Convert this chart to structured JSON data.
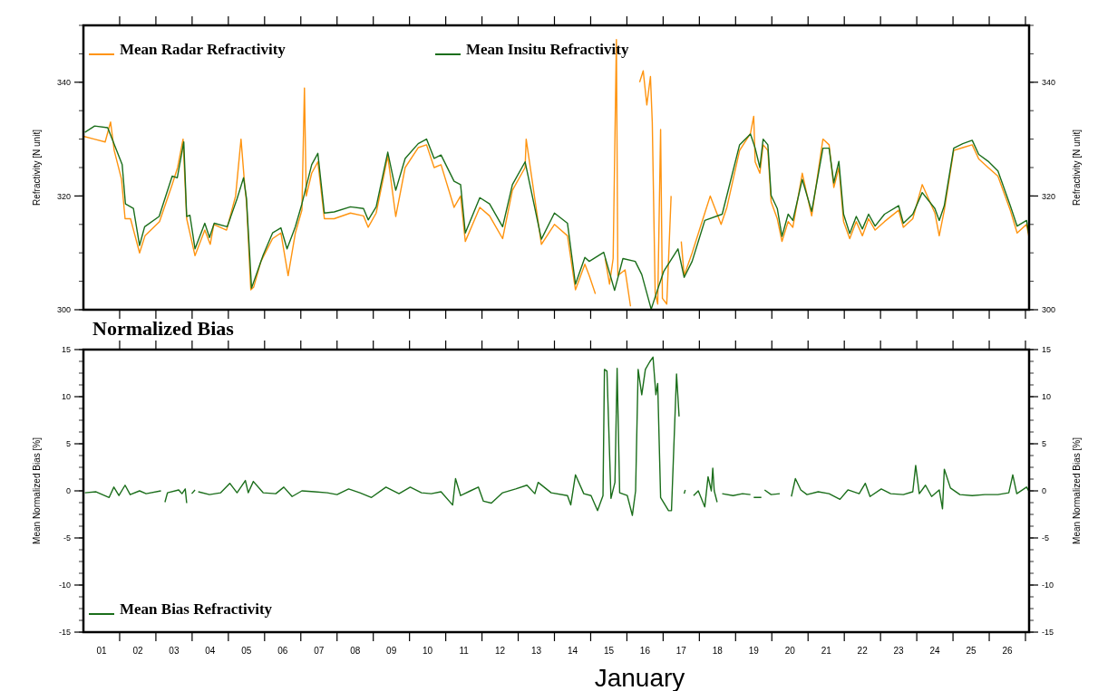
{
  "chart_data": [
    {
      "type": "line",
      "legend": "top",
      "tick_labels": "y",
      "grid": false,
      "line_style": "solid",
      "ylabel": "Refractivity [N unit]",
      "y2label": "Refractivity [N unit]",
      "xlim": [
        1,
        27.1
      ],
      "ylim": [
        300,
        350
      ],
      "yticks": [
        300,
        320,
        340
      ],
      "y2lim": [
        300,
        350
      ],
      "y2ticks": [
        300,
        320,
        340
      ],
      "xticks": [
        {
          "value": 2,
          "label": null
        },
        {
          "value": 3,
          "label": null
        },
        {
          "value": 4,
          "label": null
        },
        {
          "value": 5,
          "label": null
        },
        {
          "value": 6,
          "label": null
        },
        {
          "value": 7,
          "label": null
        },
        {
          "value": 8,
          "label": null
        },
        {
          "value": 9,
          "label": null
        },
        {
          "value": 10,
          "label": null
        },
        {
          "value": 11,
          "label": null
        },
        {
          "value": 12,
          "label": null
        },
        {
          "value": 13,
          "label": null
        },
        {
          "value": 14,
          "label": null
        },
        {
          "value": 15,
          "label": null
        },
        {
          "value": 16,
          "label": null
        },
        {
          "value": 17,
          "label": null
        },
        {
          "value": 18,
          "label": null
        },
        {
          "value": 19,
          "label": null
        },
        {
          "value": 20,
          "label": null
        },
        {
          "value": 21,
          "label": null
        },
        {
          "value": 22,
          "label": null
        },
        {
          "value": 23,
          "label": null
        },
        {
          "value": 24,
          "label": null
        },
        {
          "value": 25,
          "label": null
        },
        {
          "value": 26,
          "label": null
        },
        {
          "value": 27,
          "label": null
        }
      ],
      "series": [
        {
          "name": "Mean Radar Refractivity",
          "color": "#ff9410",
          "x": [
            1.0,
            1.3,
            1.6,
            1.75,
            1.85,
            2.05,
            2.15,
            2.3,
            2.55,
            2.7,
            3.1,
            3.45,
            3.6,
            3.75,
            3.85,
            4.08,
            4.35,
            4.5,
            4.6,
            4.95,
            5.2,
            5.35,
            5.45,
            5.5,
            5.62,
            5.7,
            5.9,
            6.22,
            6.45,
            6.65,
            6.85,
            7.03,
            7.1,
            7.15,
            7.3,
            7.47,
            7.65,
            7.92,
            8.37,
            8.73,
            8.86,
            9.08,
            9.4,
            9.62,
            9.88,
            10.24,
            10.47,
            10.68,
            10.87,
            11.23,
            11.41,
            11.54,
            11.94,
            12.21,
            12.57,
            12.84,
            13.19,
            13.22,
            13.64,
            14.0,
            14.36,
            14.58,
            14.84,
            14.96,
            15.13,
            15.25,
            15.3,
            15.35,
            15.4,
            15.52,
            15.62,
            15.71,
            15.75,
            15.95,
            16.1,
            16.15,
            16.2,
            16.3,
            16.35,
            16.45,
            16.55,
            16.65,
            16.7,
            16.78,
            16.85,
            16.93,
            16.98,
            17.1,
            17.22,
            17.27,
            17.33,
            17.45,
            17.5,
            17.58,
            17.8,
            18.0,
            18.15,
            18.3,
            18.6,
            18.76,
            19.11,
            19.41,
            19.5,
            19.54,
            19.67,
            19.76,
            19.89,
            19.98,
            20.15,
            20.28,
            20.45,
            20.58,
            20.84,
            21.1,
            21.41,
            21.58,
            21.71,
            21.85,
            21.98,
            22.15,
            22.33,
            22.5,
            22.67,
            22.85,
            23.11,
            23.5,
            23.63,
            23.89,
            24.15,
            24.5,
            24.62,
            24.76,
            25.02,
            25.27,
            25.53,
            25.71,
            25.97,
            26.24,
            26.58,
            26.77,
            27.03,
            27.09
          ],
          "values": [
            330.5,
            330,
            329.5,
            333,
            328,
            323,
            316,
            316,
            310,
            313,
            315.5,
            322,
            325,
            330,
            316,
            309.5,
            314,
            311.5,
            315,
            314,
            320,
            330,
            322,
            319,
            303.5,
            304,
            308.5,
            312.5,
            313.5,
            306,
            313.5,
            317.5,
            339,
            320,
            324,
            326,
            316,
            316,
            317,
            316.5,
            314.5,
            317,
            327,
            316.4,
            325,
            328.5,
            329,
            325,
            325.5,
            318,
            320,
            312,
            318,
            316.5,
            312.5,
            321,
            325,
            330,
            311.5,
            315,
            313,
            303.5,
            308,
            306,
            302.8,
            null,
            null,
            null,
            309,
            304.5,
            309,
            347.5,
            306,
            307,
            300.6,
            null,
            null,
            null,
            340,
            342,
            336,
            341,
            333,
            303,
            301,
            331.7,
            302,
            301,
            320,
            null,
            null,
            null,
            312,
            306,
            310,
            314,
            317,
            320,
            315,
            318,
            328,
            331,
            334,
            326,
            324,
            329,
            328,
            319,
            316,
            312,
            315.5,
            314.5,
            324,
            316.5,
            330,
            329,
            321.5,
            325,
            315.5,
            312.5,
            315.5,
            313,
            316,
            314,
            315.5,
            317.5,
            314.5,
            316,
            322,
            317,
            313,
            317.5,
            328,
            328.5,
            329,
            326.5,
            325,
            323.5,
            317.5,
            313.5,
            315,
            313
          ]
        },
        {
          "name": "Mean Insitu Refractivity",
          "color": "#1b6e1b",
          "x": [
            1.04,
            1.31,
            1.67,
            2.07,
            2.16,
            2.38,
            2.55,
            2.69,
            3.09,
            3.45,
            3.59,
            3.77,
            3.85,
            3.94,
            4.08,
            4.35,
            4.48,
            4.61,
            4.97,
            5.24,
            5.42,
            5.5,
            5.64,
            5.96,
            6.22,
            6.45,
            6.62,
            6.85,
            7.03,
            7.3,
            7.47,
            7.65,
            7.92,
            8.37,
            8.73,
            8.86,
            9.08,
            9.4,
            9.62,
            9.88,
            10.24,
            10.47,
            10.68,
            10.87,
            11.23,
            11.41,
            11.54,
            11.94,
            12.21,
            12.57,
            12.84,
            13.19,
            13.64,
            14.0,
            14.36,
            14.58,
            14.84,
            14.96,
            15.36,
            15.66,
            15.89,
            16.23,
            16.41,
            16.67,
            16.84,
            17.02,
            17.41,
            17.58,
            17.8,
            18.15,
            18.63,
            18.76,
            19.11,
            19.41,
            19.54,
            19.67,
            19.76,
            19.89,
            19.98,
            20.15,
            20.28,
            20.45,
            20.58,
            20.84,
            21.1,
            21.41,
            21.58,
            21.71,
            21.85,
            21.98,
            22.15,
            22.33,
            22.5,
            22.67,
            22.85,
            23.11,
            23.5,
            23.63,
            23.89,
            24.15,
            24.5,
            24.62,
            24.76,
            25.02,
            25.27,
            25.53,
            25.71,
            25.97,
            26.24,
            26.58,
            26.77,
            27.03,
            27.09
          ],
          "values": [
            331.2,
            332.3,
            332.0,
            325.5,
            318.6,
            317.8,
            311.3,
            314.6,
            316.4,
            323.5,
            323.2,
            329.5,
            316.4,
            316.6,
            310.7,
            315.2,
            312.7,
            315.2,
            314.6,
            319.5,
            323.2,
            319.6,
            303.8,
            309.6,
            313.5,
            314.4,
            310.7,
            314.6,
            318.6,
            325.5,
            327.5,
            317.0,
            317.2,
            318.1,
            317.8,
            315.8,
            318.1,
            327.7,
            321.0,
            326.6,
            329.2,
            330.0,
            326.6,
            327.2,
            322.6,
            322.0,
            313.5,
            319.7,
            318.6,
            314.6,
            322.0,
            326.0,
            312.4,
            317.0,
            315.2,
            304.5,
            309.2,
            308.5,
            310.1,
            303.4,
            309.0,
            308.5,
            306.2,
            300.1,
            303.4,
            306.8,
            310.7,
            305.7,
            308.5,
            315.7,
            316.8,
            320.1,
            329.0,
            330.9,
            328.4,
            325.0,
            330.0,
            329.0,
            320.1,
            317.8,
            312.9,
            316.8,
            315.7,
            322.9,
            317.3,
            328.4,
            328.4,
            322.3,
            326.1,
            316.8,
            313.4,
            316.4,
            314.2,
            316.8,
            314.7,
            316.8,
            318.3,
            315.2,
            316.8,
            320.6,
            317.8,
            315.7,
            318.3,
            328.4,
            329.2,
            329.8,
            327.3,
            326.1,
            324.4,
            318.3,
            314.7,
            315.7,
            313.4
          ]
        }
      ]
    },
    {
      "type": "line",
      "title": "Normalized Bias",
      "legend": "bottom left",
      "grid": false,
      "line_style": "solid",
      "xlabel": "January",
      "ylabel": "Mean Normalized Bias [%]",
      "y2label": "Mean Normalized Bias [%]",
      "xlim": [
        1,
        27.1
      ],
      "ylim": [
        -15,
        15
      ],
      "yticks": [
        -15,
        -10,
        -5,
        0,
        5,
        10,
        15
      ],
      "y2lim": [
        -15,
        15
      ],
      "y2ticks": [
        -15,
        -10,
        -5,
        0,
        5,
        10,
        15
      ],
      "xticks": [
        {
          "value": 1.5,
          "label": "01"
        },
        {
          "value": 2,
          "label": null
        },
        {
          "value": 2.5,
          "label": "02"
        },
        {
          "value": 3,
          "label": null
        },
        {
          "value": 3.5,
          "label": "03"
        },
        {
          "value": 4,
          "label": null
        },
        {
          "value": 4.5,
          "label": "04"
        },
        {
          "value": 5,
          "label": null
        },
        {
          "value": 5.5,
          "label": "05"
        },
        {
          "value": 6,
          "label": null
        },
        {
          "value": 6.5,
          "label": "06"
        },
        {
          "value": 7,
          "label": null
        },
        {
          "value": 7.5,
          "label": "07"
        },
        {
          "value": 8,
          "label": null
        },
        {
          "value": 8.5,
          "label": "08"
        },
        {
          "value": 9,
          "label": null
        },
        {
          "value": 9.5,
          "label": "09"
        },
        {
          "value": 10,
          "label": null
        },
        {
          "value": 10.5,
          "label": "10"
        },
        {
          "value": 11,
          "label": null
        },
        {
          "value": 11.5,
          "label": "11"
        },
        {
          "value": 12,
          "label": null
        },
        {
          "value": 12.5,
          "label": "12"
        },
        {
          "value": 13,
          "label": null
        },
        {
          "value": 13.5,
          "label": "13"
        },
        {
          "value": 14,
          "label": null
        },
        {
          "value": 14.5,
          "label": "14"
        },
        {
          "value": 15,
          "label": null
        },
        {
          "value": 15.5,
          "label": "15"
        },
        {
          "value": 16,
          "label": null
        },
        {
          "value": 16.5,
          "label": "16"
        },
        {
          "value": 17,
          "label": null
        },
        {
          "value": 17.5,
          "label": "17"
        },
        {
          "value": 18,
          "label": null
        },
        {
          "value": 18.5,
          "label": "18"
        },
        {
          "value": 19,
          "label": null
        },
        {
          "value": 19.5,
          "label": "19"
        },
        {
          "value": 20,
          "label": null
        },
        {
          "value": 20.5,
          "label": "20"
        },
        {
          "value": 21,
          "label": null
        },
        {
          "value": 21.5,
          "label": "21"
        },
        {
          "value": 22,
          "label": null
        },
        {
          "value": 22.5,
          "label": "22"
        },
        {
          "value": 23,
          "label": null
        },
        {
          "value": 23.5,
          "label": "23"
        },
        {
          "value": 24,
          "label": null
        },
        {
          "value": 24.5,
          "label": "24"
        },
        {
          "value": 25,
          "label": null
        },
        {
          "value": 25.5,
          "label": "25"
        },
        {
          "value": 26,
          "label": null
        },
        {
          "value": 26.5,
          "label": "26"
        },
        {
          "value": 27,
          "label": null
        }
      ],
      "series": [
        {
          "name": "Mean Bias Refractivity",
          "color": "#1b6e1b",
          "x": [
            1.04,
            1.35,
            1.71,
            1.84,
            1.98,
            2.15,
            2.29,
            2.55,
            2.73,
            3.14,
            3.2,
            3.25,
            3.32,
            3.63,
            3.72,
            3.81,
            3.85,
            3.92,
            3.99,
            4.08,
            4.12,
            4.17,
            4.48,
            4.79,
            5.04,
            5.24,
            5.47,
            5.55,
            5.69,
            5.96,
            6.31,
            6.53,
            6.76,
            7.03,
            7.38,
            7.73,
            8.0,
            8.32,
            8.63,
            8.95,
            9.35,
            9.71,
            10.02,
            10.33,
            10.6,
            10.87,
            11.19,
            11.27,
            11.41,
            11.68,
            11.9,
            12.04,
            12.26,
            12.57,
            12.93,
            13.24,
            13.46,
            13.55,
            13.91,
            14.36,
            14.45,
            14.58,
            14.81,
            15.01,
            15.19,
            15.34,
            15.38,
            15.45,
            15.56,
            15.67,
            15.73,
            15.8,
            16.01,
            16.15,
            16.24,
            16.31,
            16.41,
            16.51,
            16.63,
            16.72,
            16.8,
            16.85,
            16.93,
            17.15,
            17.23,
            17.37,
            17.44,
            17.45,
            17.5,
            17.54,
            17.58,
            17.61,
            17.7,
            17.84,
            17.97,
            18.15,
            18.24,
            18.33,
            18.37,
            18.41,
            18.49,
            18.56,
            18.63,
            18.93,
            19.19,
            19.41,
            19.45,
            19.5,
            19.71,
            19.75,
            19.8,
            19.98,
            20.22,
            20.25,
            20.51,
            20.54,
            20.65,
            20.8,
            20.97,
            21.28,
            21.58,
            21.88,
            22.1,
            22.41,
            22.58,
            22.71,
            23.02,
            23.28,
            23.63,
            23.89,
            23.97,
            24.07,
            24.24,
            24.41,
            24.62,
            24.71,
            24.76,
            24.93,
            25.19,
            25.53,
            25.88,
            26.24,
            26.54,
            26.65,
            26.76,
            27.03,
            27.09
          ],
          "values": [
            -0.2,
            -0.1,
            -0.7,
            0.4,
            -0.5,
            0.6,
            -0.4,
            0,
            -0.3,
            0,
            null,
            -1.2,
            -0.2,
            0.1,
            -0.3,
            0.2,
            -1.3,
            null,
            -0.3,
            0.1,
            null,
            -0.1,
            -0.4,
            -0.2,
            0.8,
            -0.2,
            1.1,
            -0.2,
            1.0,
            -0.2,
            -0.3,
            0.4,
            -0.6,
            0,
            -0.1,
            -0.2,
            -0.4,
            0.2,
            -0.2,
            -0.7,
            0.4,
            -0.3,
            0.4,
            -0.2,
            -0.3,
            -0.1,
            -1.5,
            1.3,
            -0.5,
            0,
            0.4,
            -1.1,
            -1.3,
            -0.2,
            0.2,
            0.6,
            -0.3,
            0.9,
            -0.2,
            -0.5,
            -1.5,
            1.7,
            -0.3,
            -0.5,
            -2.1,
            -0.5,
            12.9,
            12.7,
            -0.8,
            0.9,
            13.0,
            -0.2,
            -0.5,
            -2.6,
            0,
            12.9,
            10.2,
            12.9,
            13.7,
            14.2,
            10.2,
            11.4,
            -0.7,
            -2.1,
            -2.1,
            12.4,
            7.9,
            null,
            null,
            null,
            -0.3,
            0.1,
            null,
            -0.5,
            0,
            -1.7,
            1.5,
            0,
            2.4,
            0,
            -1.2,
            null,
            -0.3,
            -0.5,
            -0.3,
            -0.4,
            null,
            -0.7,
            -0.7,
            null,
            0.1,
            -0.4,
            -0.3,
            null,
            null,
            -0.6,
            1.3,
            0.1,
            -0.4,
            -0.1,
            -0.3,
            -0.9,
            0.1,
            -0.3,
            0.8,
            -0.6,
            0.2,
            -0.3,
            -0.4,
            -0.1,
            2.7,
            -0.3,
            0.6,
            -0.6,
            0.1,
            -1.9,
            2.3,
            0.3,
            -0.4,
            -0.5,
            -0.4,
            -0.4,
            -0.2,
            1.7,
            -0.3,
            0.4,
            0
          ]
        }
      ]
    }
  ]
}
